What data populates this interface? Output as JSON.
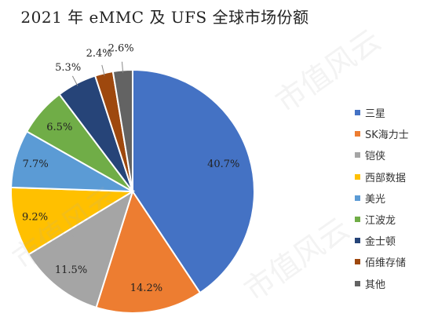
{
  "title": "2021 年 eMMC 及 UFS 全球市场份额",
  "watermark_text": "市值风云",
  "chart_data": {
    "type": "pie",
    "title": "2021 年 eMMC 及 UFS 全球市场份额",
    "legend_position": "right",
    "slices": [
      {
        "label": "三星",
        "value": 40.7,
        "display": "40.7%",
        "color": "#4472C4"
      },
      {
        "label": "SK海力士",
        "value": 14.2,
        "display": "14.2%",
        "color": "#ED7D31"
      },
      {
        "label": "铠侠",
        "value": 11.5,
        "display": "11.5%",
        "color": "#A5A5A5"
      },
      {
        "label": "西部数据",
        "value": 9.2,
        "display": "9.2%",
        "color": "#FFC000"
      },
      {
        "label": "美光",
        "value": 7.7,
        "display": "7.7%",
        "color": "#5B9BD5"
      },
      {
        "label": "江波龙",
        "value": 6.5,
        "display": "6.5%",
        "color": "#70AD47"
      },
      {
        "label": "金士顿",
        "value": 5.3,
        "display": "5.3%",
        "color": "#264478"
      },
      {
        "label": "佰维存储",
        "value": 2.4,
        "display": "2.4%",
        "color": "#9E480E"
      },
      {
        "label": "其他",
        "value": 2.6,
        "display": "2.6%",
        "color": "#636363"
      }
    ]
  }
}
